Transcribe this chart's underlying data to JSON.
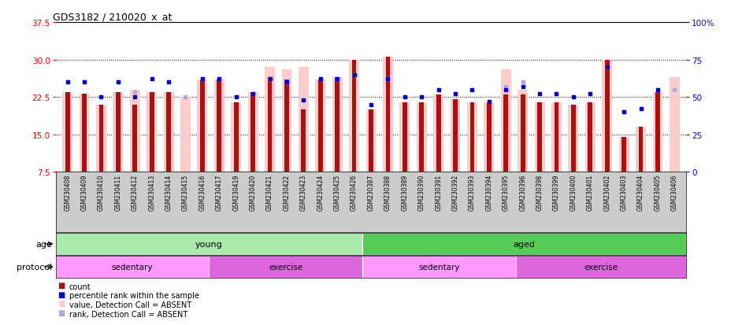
{
  "title": "GDS3182 / 210020_x_at",
  "samples": [
    "GSM230408",
    "GSM230409",
    "GSM230410",
    "GSM230411",
    "GSM230412",
    "GSM230413",
    "GSM230414",
    "GSM230415",
    "GSM230416",
    "GSM230417",
    "GSM230419",
    "GSM230420",
    "GSM230421",
    "GSM230422",
    "GSM230423",
    "GSM230424",
    "GSM230425",
    "GSM230426",
    "GSM230387",
    "GSM230388",
    "GSM230389",
    "GSM230390",
    "GSM230391",
    "GSM230392",
    "GSM230393",
    "GSM230394",
    "GSM230395",
    "GSM230396",
    "GSM230398",
    "GSM230399",
    "GSM230400",
    "GSM230401",
    "GSM230402",
    "GSM230403",
    "GSM230404",
    "GSM230405",
    "GSM230406"
  ],
  "red_values": [
    23.5,
    23.2,
    21.0,
    23.5,
    21.0,
    23.5,
    23.5,
    null,
    26.0,
    26.0,
    21.5,
    23.5,
    26.5,
    26.0,
    20.0,
    26.0,
    26.5,
    30.0,
    20.0,
    30.5,
    21.5,
    21.5,
    23.0,
    22.0,
    21.5,
    21.5,
    23.0,
    23.0,
    21.5,
    21.5,
    21.0,
    21.5,
    30.0,
    14.5,
    16.5,
    23.5,
    null
  ],
  "pink_values": [
    23.5,
    23.2,
    21.0,
    23.5,
    24.0,
    23.5,
    23.5,
    22.5,
    26.0,
    26.0,
    21.5,
    23.5,
    28.5,
    28.0,
    28.5,
    26.0,
    26.5,
    30.0,
    20.0,
    30.5,
    21.5,
    21.5,
    23.0,
    22.0,
    21.5,
    21.5,
    28.0,
    24.0,
    21.5,
    21.5,
    21.0,
    21.5,
    30.0,
    14.5,
    16.5,
    23.5,
    26.5
  ],
  "blue_values": [
    60,
    60,
    50,
    60,
    50,
    62,
    60,
    null,
    62,
    62,
    50,
    52,
    62,
    60,
    48,
    62,
    62,
    65,
    45,
    62,
    50,
    50,
    55,
    52,
    55,
    47,
    55,
    57,
    52,
    52,
    50,
    52,
    70,
    40,
    42,
    55,
    null
  ],
  "light_blue_values": [
    60,
    60,
    50,
    60,
    53,
    62,
    60,
    50,
    62,
    62,
    50,
    52,
    62,
    60,
    48,
    62,
    62,
    65,
    45,
    62,
    50,
    50,
    55,
    52,
    55,
    47,
    57,
    60,
    52,
    52,
    50,
    52,
    70,
    40,
    42,
    55,
    55
  ],
  "ylim_left": [
    7.5,
    37.5
  ],
  "yticks_left": [
    7.5,
    15.0,
    22.5,
    30.0,
    37.5
  ],
  "ylim_right": [
    0,
    100
  ],
  "yticks_right": [
    0,
    25,
    50,
    75,
    100
  ],
  "bar_color_red": "#AA1111",
  "bar_color_pink": "#FFCCCC",
  "dot_color_blue": "#0000CC",
  "dot_color_light_blue": "#AAAADD",
  "label_area_color": "#CCCCCC",
  "young_color": "#AAEAAA",
  "aged_color": "#55CC55",
  "sedentary_color": "#FF99FF",
  "exercise_color": "#DD66DD"
}
